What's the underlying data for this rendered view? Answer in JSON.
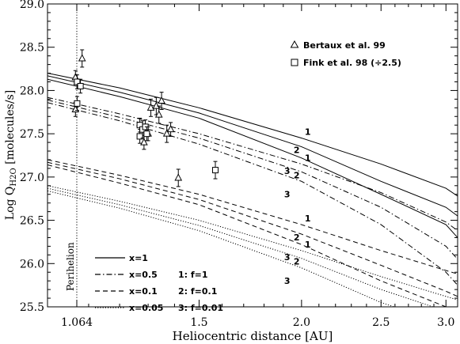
{
  "chart_data": {
    "type": "line",
    "xlabel": "Heliocentric distance [AU]",
    "ylabel_main": "Log Q",
    "ylabel_sub": "H2O",
    "ylabel_rest": " [molecules/s]",
    "xscale": "log",
    "xlim": [
      0.98,
      3.1
    ],
    "ylim": [
      25.5,
      29.0
    ],
    "x_ticks": [
      {
        "value": 1.064,
        "label": "1.064"
      },
      {
        "value": 1.5,
        "label": "1.5"
      },
      {
        "value": 2.0,
        "label": "2.0"
      },
      {
        "value": 2.5,
        "label": "2.5"
      },
      {
        "value": 3.0,
        "label": "3.0"
      }
    ],
    "y_ticks": [
      25.5,
      26.0,
      26.5,
      27.0,
      27.5,
      28.0,
      28.5,
      29.0
    ],
    "y_tick_labels": [
      "25.5",
      "26.0",
      "26.5",
      "27.0",
      "27.5",
      "28.0",
      "28.5",
      "29.0"
    ],
    "perihelion": {
      "x": 1.064,
      "label": "Perihelion"
    },
    "series": [
      {
        "group": "x=1",
        "style": "solid",
        "f_label": "1",
        "x": [
          0.98,
          1.2,
          1.5,
          2.0,
          2.5,
          3.0,
          3.1
        ],
        "y": [
          28.2,
          28.03,
          27.8,
          27.45,
          27.15,
          26.87,
          26.78
        ]
      },
      {
        "group": "x=1",
        "style": "solid",
        "f_label": "2",
        "x": [
          0.98,
          1.2,
          1.5,
          2.0,
          2.5,
          3.0,
          3.1
        ],
        "y": [
          28.17,
          27.98,
          27.74,
          27.35,
          26.95,
          26.65,
          26.55
        ]
      },
      {
        "group": "x=1",
        "style": "solid",
        "f_label": "3",
        "x": [
          0.98,
          1.2,
          1.5,
          2.0,
          2.5,
          3.0,
          3.1
        ],
        "y": [
          28.13,
          27.93,
          27.68,
          27.22,
          26.8,
          26.45,
          26.3
        ]
      },
      {
        "group": "x=0.5",
        "style": "dashdot",
        "f_label": "1",
        "x": [
          0.98,
          1.2,
          1.5,
          2.0,
          2.5,
          3.0,
          3.1
        ],
        "y": [
          27.92,
          27.73,
          27.5,
          27.15,
          26.82,
          26.48,
          26.38
        ]
      },
      {
        "group": "x=0.5",
        "style": "dashdot",
        "f_label": "2",
        "x": [
          0.98,
          1.2,
          1.5,
          2.0,
          2.5,
          3.0,
          3.1
        ],
        "y": [
          27.89,
          27.69,
          27.45,
          27.06,
          26.65,
          26.2,
          26.05
        ]
      },
      {
        "group": "x=0.5",
        "style": "dashdot",
        "f_label": "3",
        "x": [
          0.98,
          1.2,
          1.5,
          2.0,
          2.5,
          3.0,
          3.1
        ],
        "y": [
          27.86,
          27.65,
          27.38,
          26.95,
          26.45,
          25.9,
          25.75
        ]
      },
      {
        "group": "x=0.1",
        "style": "dashed",
        "f_label": "1",
        "x": [
          0.98,
          1.2,
          1.5,
          2.0,
          2.5,
          3.0,
          3.1
        ],
        "y": [
          27.2,
          27.02,
          26.8,
          26.45,
          26.15,
          25.92,
          25.88
        ]
      },
      {
        "group": "x=0.1",
        "style": "dashed",
        "f_label": "2",
        "x": [
          0.98,
          1.2,
          1.5,
          2.0,
          2.5,
          3.0,
          3.1
        ],
        "y": [
          27.17,
          26.98,
          26.74,
          26.34,
          25.98,
          25.68,
          25.62
        ]
      },
      {
        "group": "x=0.1",
        "style": "dashed",
        "f_label": "3",
        "x": [
          0.98,
          1.2,
          1.5,
          2.0,
          2.5,
          3.0,
          3.1
        ],
        "y": [
          27.14,
          26.93,
          26.68,
          26.22,
          25.8,
          25.5,
          25.43
        ]
      },
      {
        "group": "x=0.05",
        "style": "dotted",
        "f_label": "1",
        "x": [
          0.98,
          1.2,
          1.5,
          2.0,
          2.5,
          3.0,
          3.1
        ],
        "y": [
          26.9,
          26.72,
          26.5,
          26.15,
          25.85,
          25.62,
          25.58
        ]
      },
      {
        "group": "x=0.05",
        "style": "dotted",
        "f_label": "2",
        "x": [
          0.98,
          1.2,
          1.5,
          2.0,
          2.5,
          3.0,
          3.1
        ],
        "y": [
          26.87,
          26.68,
          26.44,
          26.06,
          25.7,
          25.45,
          25.4
        ]
      },
      {
        "group": "x=0.05",
        "style": "dotted",
        "f_label": "3",
        "x": [
          0.98,
          1.2,
          1.5,
          2.0,
          2.5,
          3.0,
          3.1
        ],
        "y": [
          26.84,
          26.64,
          26.38,
          25.95,
          25.55,
          25.3,
          25.25
        ]
      }
    ],
    "curve_label_at_x": 2.0,
    "observations": [
      {
        "name": "Bertaux et al. 99",
        "marker": "triangle",
        "points": [
          {
            "x": 1.06,
            "y": 28.15,
            "err": 0.08
          },
          {
            "x": 1.06,
            "y": 27.78,
            "err": 0.08
          },
          {
            "x": 1.08,
            "y": 28.37,
            "err": 0.1
          },
          {
            "x": 1.285,
            "y": 27.4,
            "err": 0.08
          },
          {
            "x": 1.3,
            "y": 27.5,
            "err": 0.08
          },
          {
            "x": 1.31,
            "y": 27.8,
            "err": 0.1
          },
          {
            "x": 1.33,
            "y": 27.82,
            "err": 0.1
          },
          {
            "x": 1.34,
            "y": 27.72,
            "err": 0.1
          },
          {
            "x": 1.35,
            "y": 27.88,
            "err": 0.1
          },
          {
            "x": 1.37,
            "y": 27.5,
            "err": 0.1
          },
          {
            "x": 1.385,
            "y": 27.55,
            "err": 0.08
          },
          {
            "x": 1.415,
            "y": 26.99,
            "err": 0.1
          }
        ]
      },
      {
        "name": "Fink et al. 98 (÷2.5)",
        "marker": "square",
        "points": [
          {
            "x": 1.065,
            "y": 28.1,
            "err": 0.08
          },
          {
            "x": 1.075,
            "y": 28.05,
            "err": 0.08
          },
          {
            "x": 1.065,
            "y": 27.85,
            "err": 0.08
          },
          {
            "x": 1.27,
            "y": 27.6,
            "err": 0.08
          },
          {
            "x": 1.27,
            "y": 27.47,
            "err": 0.08
          },
          {
            "x": 1.28,
            "y": 27.55,
            "err": 0.1
          },
          {
            "x": 1.29,
            "y": 27.58,
            "err": 0.08
          },
          {
            "x": 1.295,
            "y": 27.5,
            "err": 0.08
          },
          {
            "x": 1.57,
            "y": 27.08,
            "err": 0.1
          }
        ]
      }
    ],
    "legend_lines": [
      {
        "label": "x=1",
        "style": "solid"
      },
      {
        "label": "x=0.5",
        "style": "dashdot"
      },
      {
        "label": "x=0.1",
        "style": "dashed"
      },
      {
        "label": "x=0.05",
        "style": "dotted"
      }
    ],
    "legend_f": [
      "1:  f=1",
      "2:  f=0.1",
      "3:  f=0.01"
    ]
  }
}
